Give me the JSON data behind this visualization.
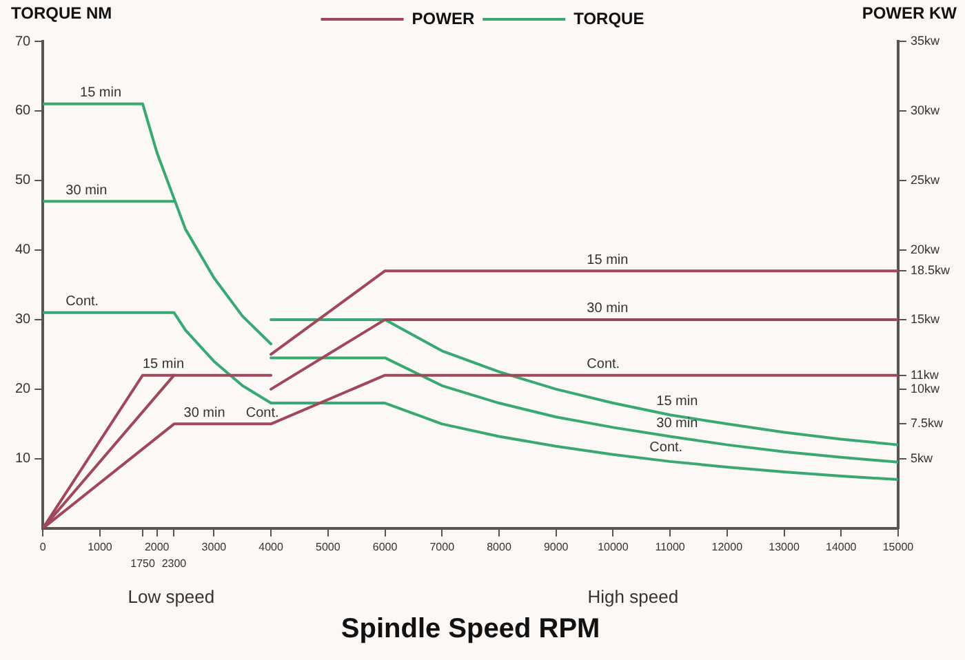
{
  "chart_data": {
    "type": "line",
    "xlabel": "Spindle Speed RPM",
    "ylabel": "TORQUE NM",
    "y2label": "POWER KW",
    "xlim": [
      0,
      15000
    ],
    "xticks": [
      0,
      1000,
      {
        "value": 1750,
        "label": null
      },
      2000,
      {
        "value": 2300,
        "label": null
      },
      3000,
      4000,
      5000,
      6000,
      7000,
      8000,
      9000,
      10000,
      11000,
      12000,
      13000,
      14000,
      15000
    ],
    "ylim": [
      0,
      70
    ],
    "yticks": [
      10,
      20,
      30,
      40,
      50,
      60,
      70
    ],
    "y2lim": [
      0,
      35
    ],
    "y2ticks": [
      {
        "value": 5,
        "label": "5kw"
      },
      {
        "value": 7.5,
        "label": "7.5kw"
      },
      {
        "value": 10,
        "label": "10kw"
      },
      {
        "value": 11,
        "label": "11kw"
      },
      {
        "value": 15,
        "label": "15kw"
      },
      {
        "value": 18.5,
        "label": "18.5kw"
      },
      {
        "value": 20,
        "label": "20kw"
      },
      {
        "value": 25,
        "label": "25kw"
      },
      {
        "value": 30,
        "label": "30kw"
      },
      {
        "value": 35,
        "label": "35kw"
      }
    ],
    "grid": false,
    "legend": "top",
    "marker": "none",
    "line_style": "solid",
    "series": [
      {
        "name": "POWER",
        "color": "#a0485a",
        "axis": "y2",
        "x": [
          0,
          1750,
          4000
        ],
        "values": [
          0,
          11,
          11
        ]
      },
      {
        "color": "#a0485a",
        "axis": "y2",
        "x": [
          0,
          2300
        ],
        "values": [
          0,
          11
        ]
      },
      {
        "color": "#a0485a",
        "axis": "y2",
        "x": [
          0,
          2300,
          4000,
          6000,
          15000
        ],
        "values": [
          0,
          7.5,
          7.5,
          11,
          11
        ]
      },
      {
        "color": "#a0485a",
        "axis": "y2",
        "x": [
          4000,
          6000,
          15000
        ],
        "values": [
          12.5,
          18.5,
          18.5
        ]
      },
      {
        "color": "#a0485a",
        "axis": "y2",
        "x": [
          4000,
          6000,
          15000
        ],
        "values": [
          10,
          15,
          15
        ]
      },
      {
        "name": "TORQUE",
        "color": "#3aa872",
        "x": [
          0,
          1750,
          2000,
          2500,
          3000,
          3500,
          4000
        ],
        "values": [
          61,
          61,
          54,
          43,
          36,
          30.5,
          26.5
        ]
      },
      {
        "color": "#3aa872",
        "x": [
          0,
          2300
        ],
        "values": [
          47,
          47
        ]
      },
      {
        "color": "#3aa872",
        "x": [
          0,
          2300,
          2500,
          3000,
          3500,
          4000,
          6000,
          7000,
          8000,
          9000,
          10000,
          11000,
          12000,
          13000,
          14000,
          15000
        ],
        "values": [
          31,
          31,
          28.5,
          24,
          20.5,
          18,
          18,
          15,
          13.2,
          11.8,
          10.6,
          9.6,
          8.8,
          8.1,
          7.5,
          7
        ]
      },
      {
        "color": "#3aa872",
        "x": [
          4000,
          6000,
          7000,
          8000,
          9000,
          10000,
          11000,
          12000,
          13000,
          14000,
          15000
        ],
        "values": [
          30,
          30,
          25.5,
          22.5,
          20,
          18,
          16.3,
          15,
          13.8,
          12.8,
          12
        ]
      },
      {
        "color": "#3aa872",
        "x": [
          4000,
          6000,
          7000,
          8000,
          9000,
          10000,
          11000,
          12000,
          13000,
          14000,
          15000
        ],
        "values": [
          24.5,
          24.5,
          20.5,
          18,
          16,
          14.5,
          13.2,
          12,
          11,
          10.2,
          9.5
        ]
      }
    ],
    "annotations": [
      {
        "text": "15 min",
        "x": 650,
        "y": 61
      },
      {
        "text": "30 min",
        "x": 400,
        "y": 47
      },
      {
        "text": "Cont.",
        "x": 400,
        "y": 31
      },
      {
        "text": "15 min",
        "x": 1750,
        "y": 22
      },
      {
        "text": "30 min",
        "x": 2470,
        "y": 15
      },
      {
        "text": "Cont.",
        "x": 3560,
        "y": 15
      },
      {
        "text": "15 min",
        "x": 9540,
        "y": 37
      },
      {
        "text": "30 min",
        "x": 9540,
        "y": 30
      },
      {
        "text": "Cont.",
        "x": 9540,
        "y": 22
      },
      {
        "text": "15 min",
        "x": 10760,
        "y": 16.7
      },
      {
        "text": "30 min",
        "x": 10760,
        "y": 13.5
      },
      {
        "text": "Cont.",
        "x": 10640,
        "y": 10
      },
      "Low speed",
      "High speed",
      "1750",
      "2300"
    ]
  }
}
